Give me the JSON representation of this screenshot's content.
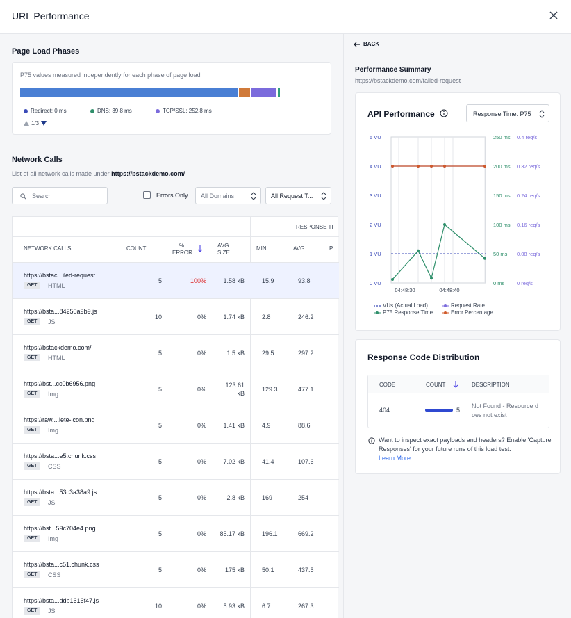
{
  "header": {
    "title": "URL Performance"
  },
  "phases": {
    "title": "Page Load Phases",
    "description": "P75 values measured independently for each phase of page load",
    "legend": [
      {
        "label": "Redirect: 0 ms",
        "color": "#3b4bb8"
      },
      {
        "label": "DNS: 39.8 ms",
        "color": "#2f8f6b"
      },
      {
        "label": "TCP/SSL: 252.8 ms",
        "color": "#7b6bdc"
      }
    ],
    "bar_colors": {
      "main": "#4a7fd4",
      "orange": "#d07a3a",
      "purple": "#7b6bdc",
      "green": "#2f9e7a"
    },
    "pager": "1/3"
  },
  "network": {
    "title": "Network Calls",
    "subtitle_prefix": "List of all network calls made under ",
    "subtitle_url": "https://bstackdemo.com/",
    "search_placeholder": "Search",
    "errors_only_label": "Errors Only",
    "domain_select": "All Domains",
    "request_select": "All Request T...",
    "columns": {
      "group_response": "RESPONSE TI",
      "network_calls": "NETWORK CALLS",
      "count": "COUNT",
      "error_top": "%",
      "error_bottom": "ERROR",
      "avg_size_top": "AVG",
      "avg_size_bottom": "SIZE",
      "min": "MIN",
      "avg": "AVG",
      "p": "P"
    },
    "rows": [
      {
        "url": "https://bstac...iled-request",
        "method": "GET",
        "type": "HTML",
        "count": "5",
        "error": "100%",
        "size": "1.58 kB",
        "min": "15.9",
        "avg": "93.8"
      },
      {
        "url": "https://bsta...84250a9b9.js",
        "method": "GET",
        "type": "JS",
        "count": "10",
        "error": "0%",
        "size": "1.74 kB",
        "min": "2.8",
        "avg": "246.2"
      },
      {
        "url": "https://bstackdemo.com/",
        "method": "GET",
        "type": "HTML",
        "count": "5",
        "error": "0%",
        "size": "1.5 kB",
        "min": "29.5",
        "avg": "297.2"
      },
      {
        "url": "https://bst...cc0b6956.png",
        "method": "GET",
        "type": "Img",
        "count": "5",
        "error": "0%",
        "size": "123.61",
        "size2": "kB",
        "min": "129.3",
        "avg": "477.1"
      },
      {
        "url": "https://raw....lete-icon.png",
        "method": "GET",
        "type": "Img",
        "count": "5",
        "error": "0%",
        "size": "1.41 kB",
        "min": "4.9",
        "avg": "88.6"
      },
      {
        "url": "https://bsta...e5.chunk.css",
        "method": "GET",
        "type": "CSS",
        "count": "5",
        "error": "0%",
        "size": "7.02 kB",
        "min": "41.4",
        "avg": "107.6"
      },
      {
        "url": "https://bsta...53c3a38a9.js",
        "method": "GET",
        "type": "JS",
        "count": "5",
        "error": "0%",
        "size": "2.8 kB",
        "min": "169",
        "avg": "254"
      },
      {
        "url": "https://bst...59c704e4.png",
        "method": "GET",
        "type": "Img",
        "count": "5",
        "error": "0%",
        "size": "85.17 kB",
        "min": "196.1",
        "avg": "669.2"
      },
      {
        "url": "https://bsta...c51.chunk.css",
        "method": "GET",
        "type": "CSS",
        "count": "5",
        "error": "0%",
        "size": "175 kB",
        "min": "50.1",
        "avg": "437.5"
      },
      {
        "url": "https://bsta...ddb1616f47.js",
        "method": "GET",
        "type": "JS",
        "count": "10",
        "error": "0%",
        "size": "5.93 kB",
        "min": "6.7",
        "avg": "267.3"
      }
    ]
  },
  "summary": {
    "back_label": "BACK",
    "title": "Performance Summary",
    "url": "https://bstackdemo.com/failed-request"
  },
  "api": {
    "title": "API Performance",
    "select": "Response Time: P75",
    "legend": [
      "VUs (Actual Load)",
      "Request Rate",
      "P75 Response Time",
      "Error Percentage"
    ]
  },
  "chart_data": {
    "type": "line",
    "x_tick_labels": [
      "04:48:30",
      "04:48:40"
    ],
    "x": [
      0,
      1,
      2,
      3,
      4
    ],
    "y_left_ticks": [
      "0 VU",
      "1 VU",
      "2 VU",
      "3 VU",
      "4 VU",
      "5 VU"
    ],
    "y_mid_ticks": [
      "0 ms",
      "50 ms",
      "100 ms",
      "150 ms",
      "200 ms",
      "250 ms"
    ],
    "y_right_ticks": [
      "0 req/s",
      "0.08 req/s",
      "0.16 req/s",
      "0.24 req/s",
      "0.32 req/s",
      "0.4 req/s"
    ],
    "ylim_vu": [
      0,
      5
    ],
    "ylim_ms": [
      0,
      250
    ],
    "ylim_reqs": [
      0,
      0.4
    ],
    "series": [
      {
        "name": "VUs (Actual Load)",
        "axis": "vu",
        "color": "#3b4bb8",
        "style": "dashed",
        "values": [
          1,
          1,
          1,
          1,
          1
        ]
      },
      {
        "name": "Request Rate",
        "axis": "reqs",
        "color": "#7b6bdc",
        "style": "solid",
        "values": [
          0.32,
          0.32,
          0.32,
          0.32,
          0.32
        ]
      },
      {
        "name": "P75 Response Time",
        "axis": "ms",
        "color": "#2f8f6b",
        "style": "solid",
        "values": [
          6,
          55,
          8,
          100,
          42
        ]
      },
      {
        "name": "Error Percentage",
        "axis": "ms",
        "color": "#d05a2a",
        "style": "solid",
        "values": [
          200,
          200,
          200,
          200,
          200
        ]
      }
    ],
    "grid": "vertical"
  },
  "response_codes": {
    "title": "Response Code Distribution",
    "columns": {
      "code": "CODE",
      "count": "COUNT",
      "description": "DESCRIPTION"
    },
    "rows": [
      {
        "code": "404",
        "count": "5",
        "count_fraction": 1.0,
        "description": "Not Found - Resource does not exist"
      }
    ],
    "note": "Want to inspect exact payloads and headers? Enable 'Capture Responses' for your future runs of this load test.",
    "link": "Learn More"
  }
}
